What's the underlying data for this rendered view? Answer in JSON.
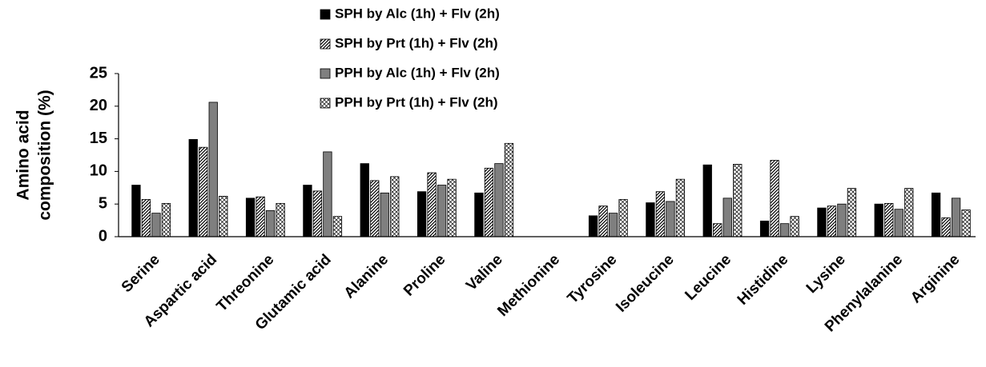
{
  "chart_data": {
    "type": "bar",
    "ylabel": [
      "Amino acid",
      "composition (%)"
    ],
    "categories": [
      "Serine",
      "Aspartic acid",
      "Threonine",
      "Glutamic acid",
      "Alanine",
      "Proline",
      "Valine",
      "Methionine",
      "Tyrosine",
      "Isoleucine",
      "Leucine",
      "Histidine",
      "Lysine",
      "Phenylalanine",
      "Arginine"
    ],
    "series": [
      {
        "name": "SPH by Alc (1h) + Flv (2h)",
        "color": "#000000",
        "pattern": "solid",
        "values": [
          7.9,
          14.9,
          5.9,
          7.9,
          11.2,
          6.9,
          6.7,
          0,
          3.2,
          5.2,
          11.0,
          2.4,
          4.4,
          5.0,
          6.7
        ]
      },
      {
        "name": "SPH by Prt (1h) + Flv (2h)",
        "color": "#000000",
        "pattern": "diagonal",
        "values": [
          5.7,
          13.7,
          6.1,
          7.0,
          8.6,
          9.8,
          10.5,
          0,
          4.7,
          6.9,
          2.0,
          11.7,
          4.7,
          5.1,
          2.9
        ]
      },
      {
        "name": "PPH by Alc (1h) + Flv (2h)",
        "color": "#7f7f7f",
        "pattern": "solid",
        "values": [
          3.6,
          20.6,
          4.0,
          13.0,
          6.7,
          7.9,
          11.2,
          0,
          3.6,
          5.4,
          5.9,
          2.0,
          5.0,
          4.2,
          5.9
        ]
      },
      {
        "name": "PPH by Prt (1h) + Flv (2h)",
        "color": "#000000",
        "pattern": "cross",
        "values": [
          5.1,
          6.2,
          5.1,
          3.1,
          9.2,
          8.8,
          14.3,
          0,
          5.7,
          8.8,
          11.1,
          3.1,
          7.4,
          7.4,
          4.1
        ]
      }
    ],
    "ylim": [
      0,
      25
    ],
    "yticks": [
      0,
      5,
      10,
      15,
      20,
      25
    ],
    "grid": false
  }
}
